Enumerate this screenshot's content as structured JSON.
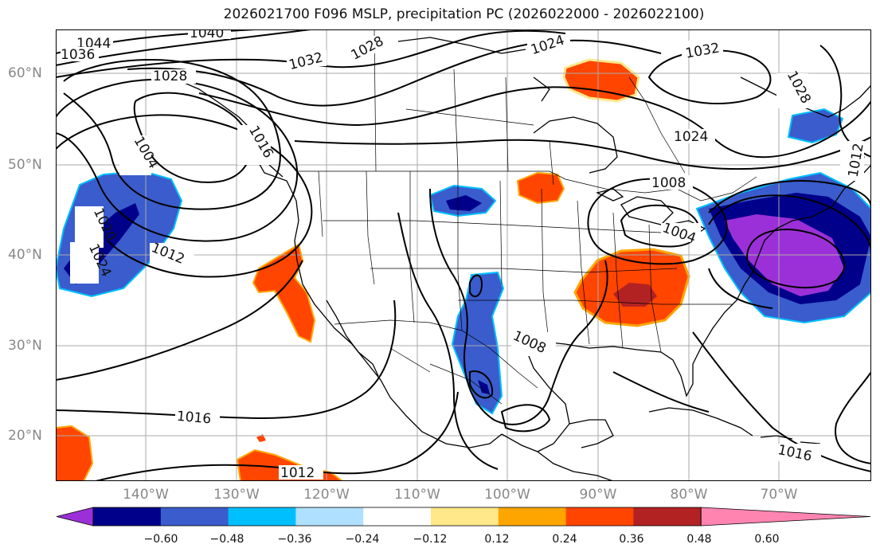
{
  "title": "2026021700 F096 MSLP, precipitation PC (2026022000 - 2026022100)",
  "lat_labels": [
    "60°N",
    "50°N",
    "40°N",
    "30°N",
    "20°N"
  ],
  "lon_labels": [
    "140°W",
    "130°W",
    "120°W",
    "110°W",
    "100°W",
    "90°W",
    "80°W",
    "70°W"
  ],
  "colorbar": {
    "tick_labels": [
      "−0.60",
      "−0.48",
      "−0.36",
      "−0.24",
      "−0.12",
      "0.12",
      "0.24",
      "0.36",
      "0.48",
      "0.60"
    ],
    "colors": [
      "#9b30d8",
      "#00008b",
      "#3a5ccc",
      "#00bfff",
      "#b0e0ff",
      "#ffffff",
      "#ffe88a",
      "#ffa500",
      "#ff4500",
      "#b22222",
      "#ff85b0"
    ]
  },
  "isobar_labels": [
    "1044",
    "1040",
    "1036",
    "1032",
    "1028",
    "1028",
    "1024",
    "1032",
    "1028",
    "1024",
    "1012",
    "1008",
    "1004",
    "1016",
    "1004",
    "1020",
    "1024",
    "1012",
    "1008",
    "1016",
    "1012",
    "1016"
  ]
}
